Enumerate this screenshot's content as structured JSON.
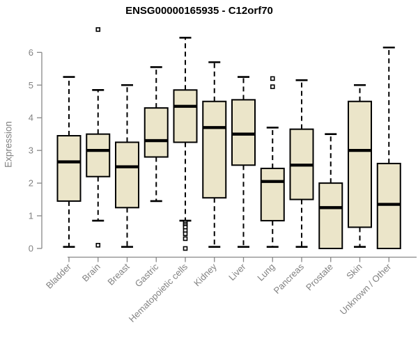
{
  "chart_data": {
    "type": "boxplot",
    "title": "ENSG00000165935 - C12orf70",
    "ylabel": "Expression",
    "xlabel": "",
    "ylim": [
      0,
      6
    ],
    "yticks": [
      0,
      1,
      2,
      3,
      4,
      5,
      6
    ],
    "grid": false,
    "legend": null,
    "x_label_rotation_deg": 45,
    "categories": [
      "Bladder",
      "Brain",
      "Breast",
      "Gastric",
      "Hematopoietic cells",
      "Kidney",
      "Liver",
      "Lung",
      "Pancreas",
      "Prostate",
      "Skin",
      "Unknown / Other"
    ],
    "boxes": [
      {
        "label": "Bladder",
        "whisker_low": 0.05,
        "q1": 1.45,
        "median": 2.65,
        "q3": 3.45,
        "whisker_high": 5.25,
        "outliers": []
      },
      {
        "label": "Brain",
        "whisker_low": 0.85,
        "q1": 2.2,
        "median": 3.0,
        "q3": 3.5,
        "whisker_high": 4.85,
        "outliers": [
          6.7,
          0.1
        ]
      },
      {
        "label": "Breast",
        "whisker_low": 0.05,
        "q1": 1.25,
        "median": 2.5,
        "q3": 3.25,
        "whisker_high": 5.0,
        "outliers": []
      },
      {
        "label": "Gastric",
        "whisker_low": 1.45,
        "q1": 2.8,
        "median": 3.3,
        "q3": 4.3,
        "whisker_high": 5.55,
        "outliers": []
      },
      {
        "label": "Hematopoietic cells",
        "whisker_low": 0.85,
        "q1": 3.25,
        "median": 4.35,
        "q3": 4.85,
        "whisker_high": 6.45,
        "outliers": [
          0.8,
          0.75,
          0.7,
          0.65,
          0.55,
          0.45,
          0.3,
          0.0
        ]
      },
      {
        "label": "Kidney",
        "whisker_low": 0.05,
        "q1": 1.55,
        "median": 3.7,
        "q3": 4.5,
        "whisker_high": 5.7,
        "outliers": []
      },
      {
        "label": "Liver",
        "whisker_low": 0.05,
        "q1": 2.55,
        "median": 3.5,
        "q3": 4.55,
        "whisker_high": 5.25,
        "outliers": []
      },
      {
        "label": "Lung",
        "whisker_low": 0.05,
        "q1": 0.85,
        "median": 2.05,
        "q3": 2.45,
        "whisker_high": 3.7,
        "outliers": [
          5.2,
          4.95
        ]
      },
      {
        "label": "Pancreas",
        "whisker_low": 0.05,
        "q1": 1.5,
        "median": 2.55,
        "q3": 3.65,
        "whisker_high": 5.15,
        "outliers": []
      },
      {
        "label": "Prostate",
        "whisker_low": null,
        "q1": 0.0,
        "median": 1.25,
        "q3": 2.0,
        "whisker_high": 3.5,
        "outliers": []
      },
      {
        "label": "Skin",
        "whisker_low": 0.05,
        "q1": 0.65,
        "median": 3.0,
        "q3": 4.5,
        "whisker_high": 5.0,
        "outliers": []
      },
      {
        "label": "Unknown / Other",
        "whisker_low": null,
        "q1": 0.0,
        "median": 1.35,
        "q3": 2.6,
        "whisker_high": 6.15,
        "outliers": []
      }
    ],
    "style": {
      "box_fill": "#ebe5c9",
      "box_stroke": "#000000",
      "median_color": "#000000",
      "whisker_color": "#000000",
      "outlier_color": "#000000",
      "outlier_shape": "open-square",
      "axis_color": "#878787",
      "tick_label_color": "#828282",
      "title_color": "#000000",
      "background": "#ffffff"
    }
  }
}
